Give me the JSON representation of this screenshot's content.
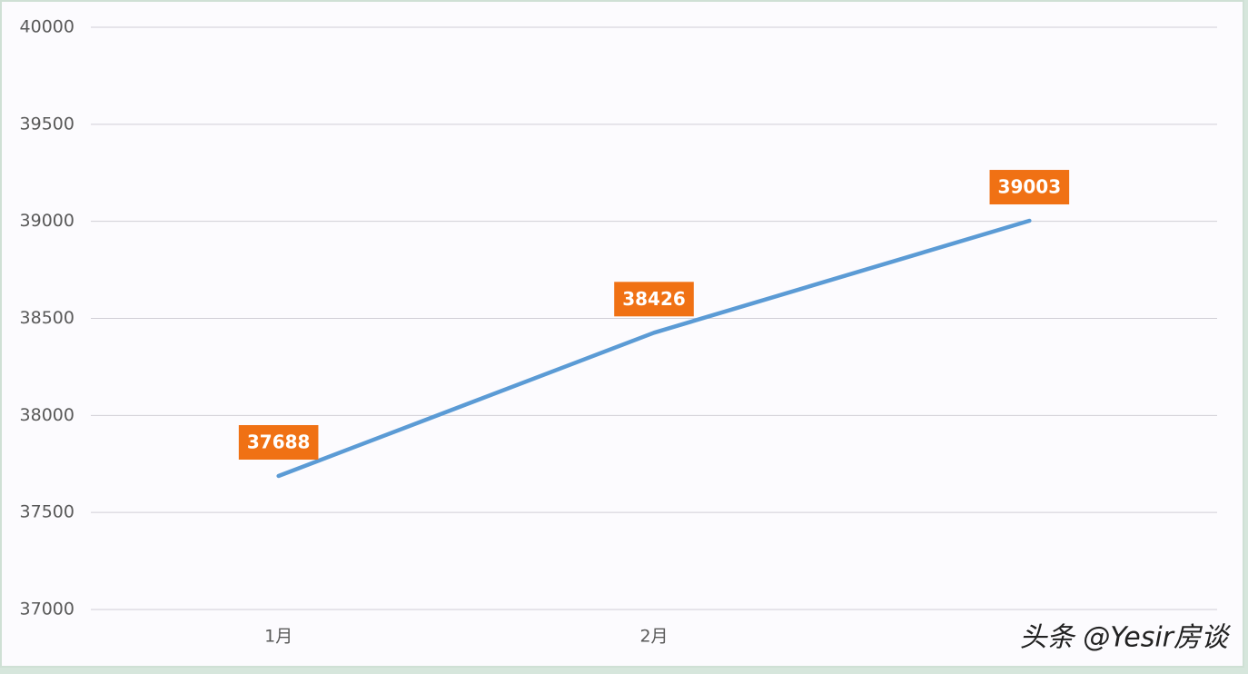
{
  "chart_data": {
    "type": "line",
    "categories": [
      "1月",
      "2月",
      null
    ],
    "values": [
      37688,
      38426,
      39003
    ],
    "color": "#5b9bd5",
    "label_color": "#f07114",
    "ylim": [
      37000,
      40000
    ],
    "yticks": [
      37000,
      37500,
      38000,
      38500,
      39000,
      39500,
      40000
    ],
    "grid": true,
    "watermark": "头条 @Yesir房谈"
  }
}
